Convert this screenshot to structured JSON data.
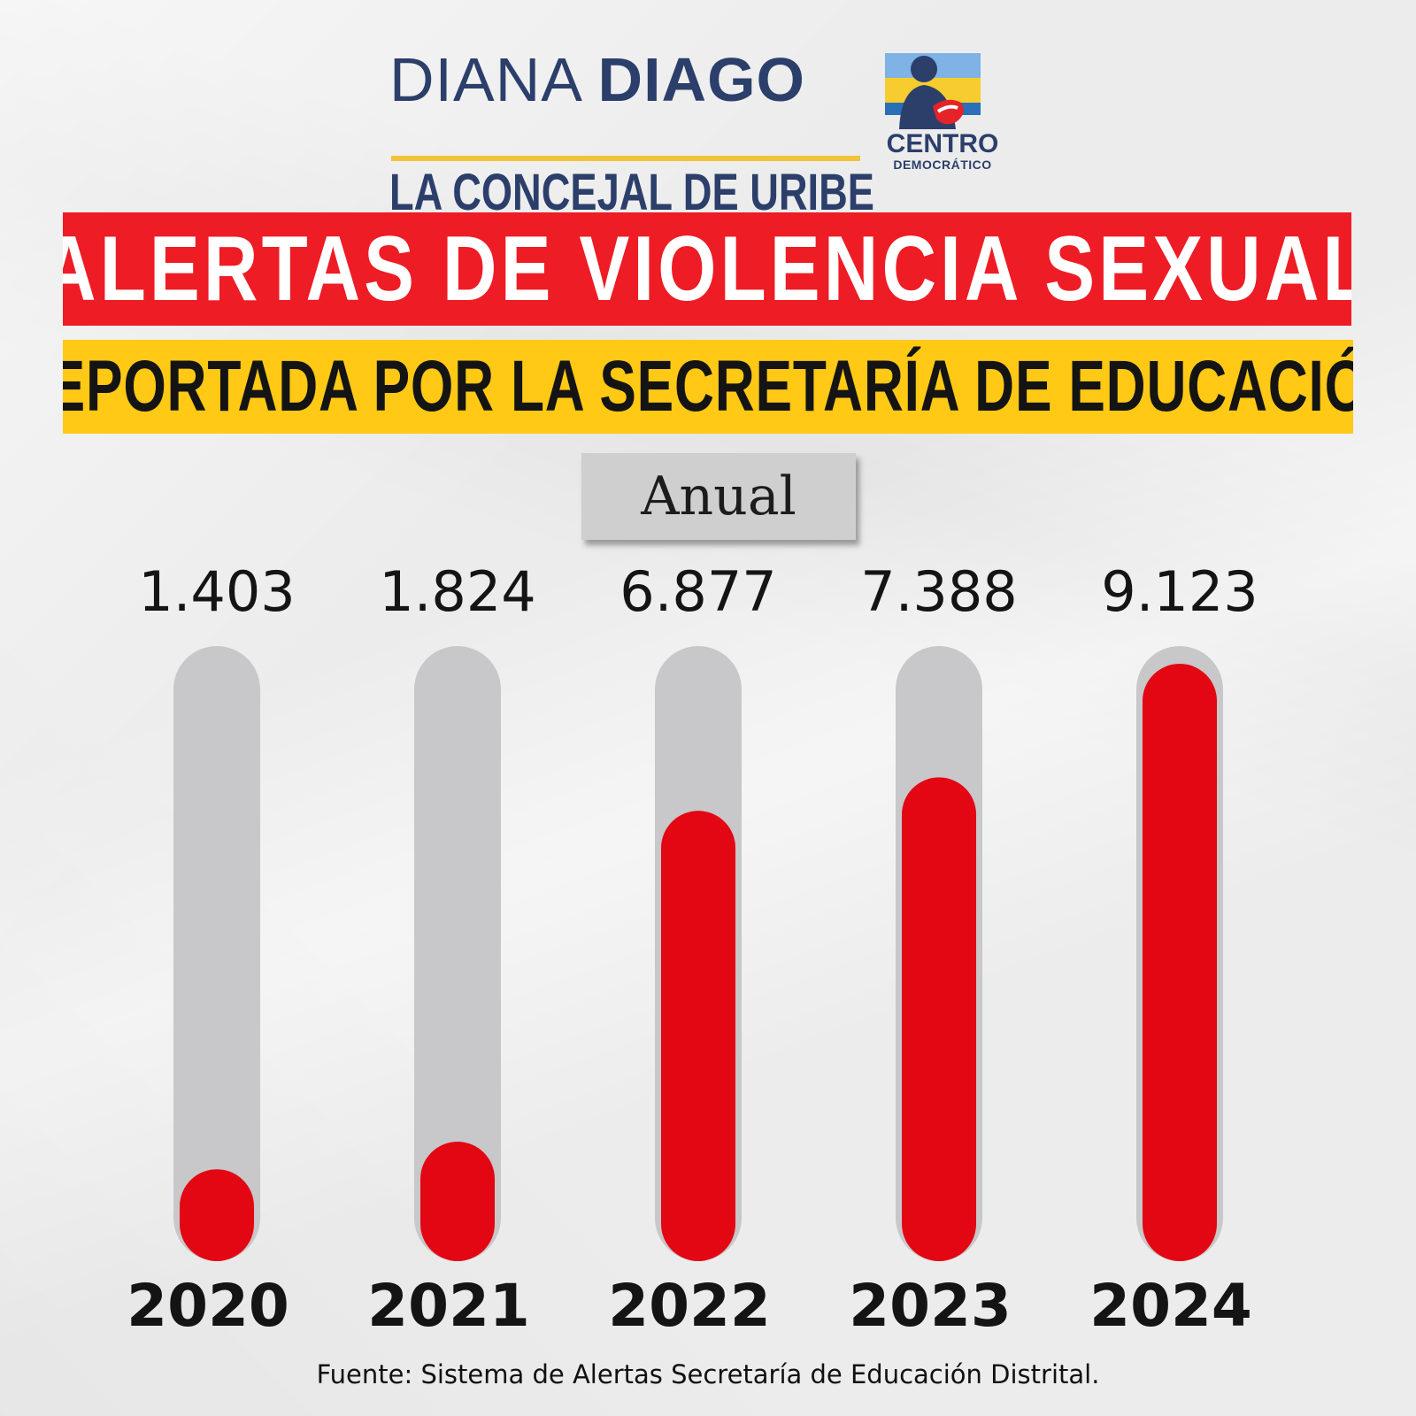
{
  "brand": {
    "name_light": "DIANA",
    "name_bold": "DIAGO",
    "tagline": "LA CONCEJAL DE URIBE",
    "party_line1": "CENTRO",
    "party_line2": "DEMOCRÁTICO"
  },
  "title": "ALERTAS DE VIOLENCIA SEXUAL",
  "subtitle": "REPORTADA POR LA SECRETARÍA DE EDUCACIÓN",
  "period": "Anual",
  "source": "Fuente: Sistema de Alertas Secretaría de Educación Distrital.",
  "colors": {
    "title_red": "#ee1c25",
    "title_yellow": "#ffc915",
    "bar_fill": "#e30613",
    "bar_track": "#c8c7c9",
    "brand_navy": "#2c3f6b"
  },
  "chart_data": {
    "type": "bar",
    "categories": [
      "2020",
      "2021",
      "2022",
      "2023",
      "2024"
    ],
    "values": [
      1403,
      1824,
      6877,
      7388,
      9123
    ],
    "value_labels": [
      "1.403",
      "1.824",
      "6.877",
      "7.388",
      "9.123"
    ],
    "ylim": [
      0,
      9123
    ],
    "grid": false,
    "legend": "none"
  }
}
